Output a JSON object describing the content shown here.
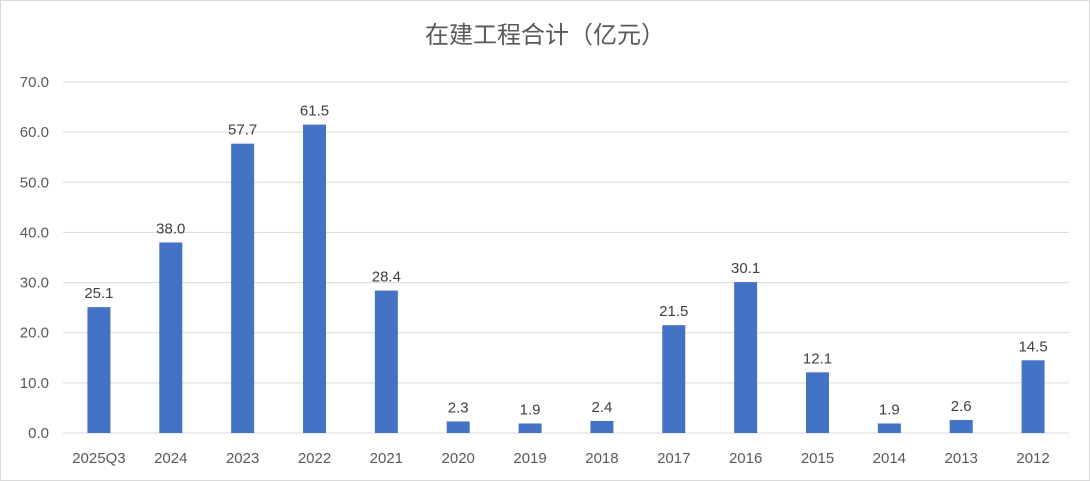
{
  "chart_data": {
    "type": "bar",
    "title": "在建工程合计（亿元）",
    "categories": [
      "2025Q3",
      "2024",
      "2023",
      "2022",
      "2021",
      "2020",
      "2019",
      "2018",
      "2017",
      "2016",
      "2015",
      "2014",
      "2013",
      "2012"
    ],
    "series": [
      {
        "values": [
          25.1,
          38.0,
          57.7,
          61.5,
          28.4,
          2.3,
          1.9,
          2.4,
          21.5,
          30.1,
          12.1,
          1.9,
          2.6,
          14.5
        ],
        "value_labels": [
          "25.1",
          "38.0",
          "57.7",
          "61.5",
          "28.4",
          "2.3",
          "1.9",
          "2.4",
          "21.5",
          "30.1",
          "12.1",
          "1.9",
          "2.6",
          "14.5"
        ],
        "color": "#4472c4"
      }
    ],
    "y_ticks": [
      "0.0",
      "10.0",
      "20.0",
      "30.0",
      "40.0",
      "50.0",
      "60.0",
      "70.0"
    ],
    "ylim": [
      0,
      70
    ],
    "grid": true,
    "gridline_color": "#d9d9d9",
    "legend": "none"
  }
}
